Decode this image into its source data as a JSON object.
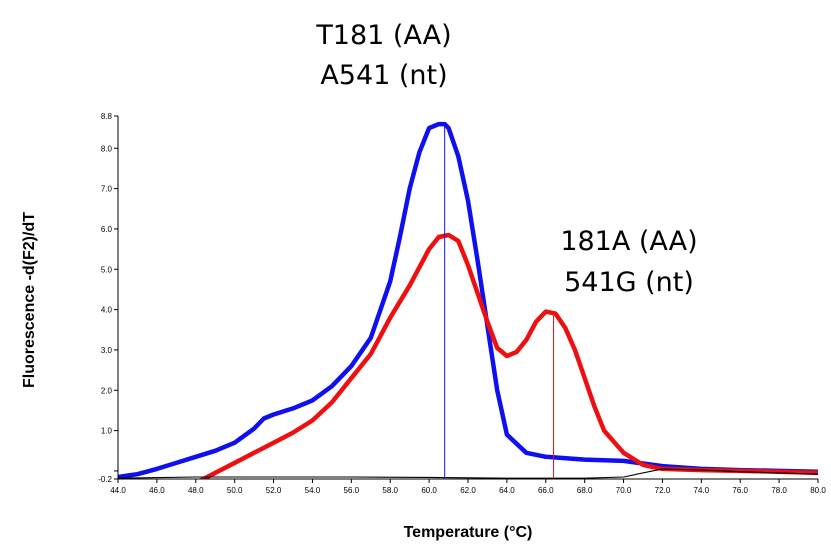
{
  "chart_data": {
    "type": "line",
    "xlabel": "Temperature (°C)",
    "ylabel": "Fluorescence -d(F2)/dT",
    "xlim": [
      44.0,
      80.0
    ],
    "ylim": [
      -0.2,
      8.8
    ],
    "x_ticks": [
      "44.0",
      "46.0",
      "48.0",
      "50.0",
      "52.0",
      "54.0",
      "56.0",
      "58.0",
      "60.0",
      "62.0",
      "64.0",
      "66.0",
      "68.0",
      "70.0",
      "72.0",
      "74.0",
      "76.0",
      "78.0",
      "80.0"
    ],
    "y_ticks": [
      {
        "label": "-0.2",
        "value": -0.2
      },
      {
        "label": "",
        "value": 0.0
      },
      {
        "label": "1.0",
        "value": 1.0
      },
      {
        "label": "2.0",
        "value": 2.0
      },
      {
        "label": "3.0",
        "value": 3.0
      },
      {
        "label": "4.0",
        "value": 4.0
      },
      {
        "label": "5.0",
        "value": 5.0
      },
      {
        "label": "6.0",
        "value": 6.0
      },
      {
        "label": "7.0",
        "value": 7.0
      },
      {
        "label": "8.0",
        "value": 8.0
      },
      {
        "label": "8.8",
        "value": 8.8
      }
    ],
    "grid": false,
    "series": [
      {
        "color": "#1010ee",
        "x": [
          44.0,
          45.0,
          46.0,
          47.0,
          48.0,
          49.0,
          50.0,
          51.0,
          51.5,
          52.0,
          53.0,
          54.0,
          55.0,
          56.0,
          57.0,
          58.0,
          58.5,
          59.0,
          59.5,
          60.0,
          60.5,
          60.8,
          61.0,
          61.5,
          62.0,
          62.5,
          63.0,
          63.5,
          64.0,
          65.0,
          66.0,
          68.0,
          70.0,
          72.0,
          74.0,
          76.0,
          78.0,
          80.0
        ],
        "y": [
          -0.15,
          -0.08,
          0.05,
          0.2,
          0.35,
          0.5,
          0.7,
          1.05,
          1.3,
          1.4,
          1.55,
          1.75,
          2.1,
          2.6,
          3.3,
          4.7,
          5.8,
          7.0,
          7.9,
          8.5,
          8.6,
          8.6,
          8.5,
          7.8,
          6.7,
          5.2,
          3.6,
          2.0,
          0.9,
          0.45,
          0.35,
          0.28,
          0.25,
          0.12,
          0.05,
          0.02,
          0.0,
          -0.02
        ]
      },
      {
        "color": "#ee1010",
        "x": [
          47.0,
          48.0,
          49.0,
          50.0,
          51.0,
          52.0,
          53.0,
          54.0,
          55.0,
          56.0,
          57.0,
          58.0,
          59.0,
          60.0,
          60.5,
          61.0,
          61.5,
          62.0,
          62.5,
          63.0,
          63.5,
          64.0,
          64.5,
          65.0,
          65.5,
          66.0,
          66.5,
          67.0,
          67.5,
          68.0,
          68.5,
          69.0,
          70.0,
          71.0,
          72.0,
          74.0,
          76.0,
          78.0,
          80.0
        ],
        "y": [
          -0.5,
          -0.3,
          -0.05,
          0.2,
          0.45,
          0.7,
          0.95,
          1.25,
          1.7,
          2.3,
          2.9,
          3.8,
          4.6,
          5.5,
          5.8,
          5.85,
          5.7,
          5.1,
          4.4,
          3.7,
          3.05,
          2.85,
          2.95,
          3.25,
          3.7,
          3.95,
          3.9,
          3.55,
          3.0,
          2.3,
          1.6,
          1.0,
          0.45,
          0.15,
          0.05,
          0.02,
          0.0,
          -0.02,
          -0.05
        ]
      },
      {
        "color": "#000000",
        "x": [
          44.0,
          48.0,
          52.0,
          56.0,
          60.0,
          64.0,
          68.0,
          70.0,
          72.0,
          74.0,
          76.0,
          78.0,
          80.0
        ],
        "y": [
          -0.18,
          -0.15,
          -0.15,
          -0.15,
          -0.16,
          -0.18,
          -0.18,
          -0.15,
          0.05,
          0.02,
          -0.02,
          -0.05,
          -0.08
        ]
      }
    ],
    "markers": [
      {
        "x": 60.8,
        "y": 8.6,
        "color": "#1010ee"
      },
      {
        "x": 66.4,
        "y": 3.95,
        "color": "#ee1010"
      }
    ],
    "annotations": [
      {
        "lines": [
          "T181 (AA)",
          "A541 (nt)"
        ]
      },
      {
        "lines": [
          "181A (AA)",
          "541G (nt)"
        ]
      }
    ]
  }
}
